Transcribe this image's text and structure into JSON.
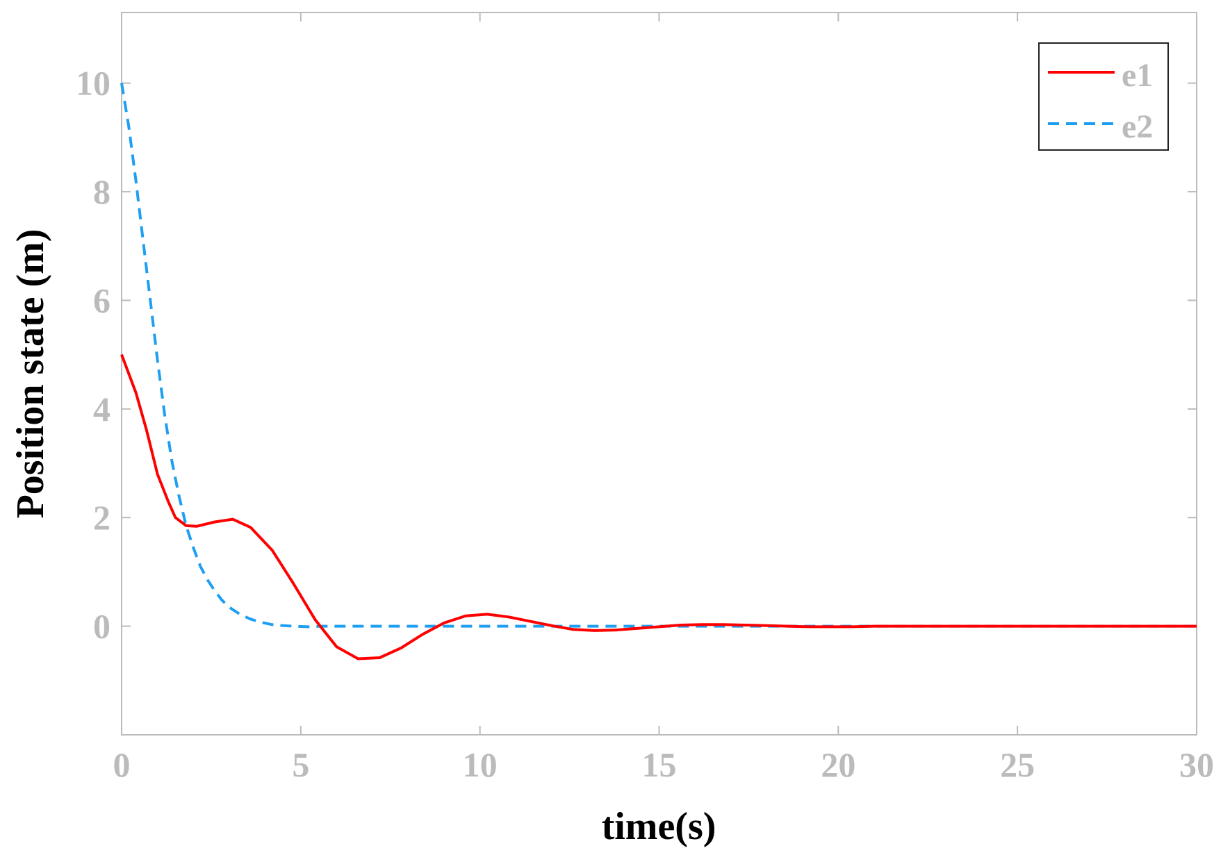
{
  "chart_data": {
    "type": "line",
    "xlabel": "time(s)",
    "ylabel": "Position state (m)",
    "xlim": [
      0,
      30
    ],
    "ylim": [
      -2,
      11.3
    ],
    "xticks": [
      0,
      5,
      10,
      15,
      20,
      25,
      30
    ],
    "xtick_labels": [
      "0",
      "5",
      "10",
      "15",
      "20",
      "25",
      "30"
    ],
    "yticks": [
      0,
      2,
      4,
      6,
      8,
      10
    ],
    "ytick_labels": [
      "0",
      "2",
      "4",
      "6",
      "8",
      "10"
    ],
    "grid": false,
    "legend_position": "top-right",
    "series": [
      {
        "name": "e1",
        "color": "#ff0000",
        "style": "solid",
        "x": [
          0,
          0.4,
          0.7,
          1.0,
          1.3,
          1.5,
          1.8,
          2.1,
          2.6,
          3.1,
          3.6,
          4.2,
          4.8,
          5.4,
          6.0,
          6.6,
          7.2,
          7.8,
          8.4,
          9.0,
          9.6,
          10.2,
          10.8,
          11.4,
          12.0,
          12.6,
          13.2,
          13.8,
          14.4,
          15.0,
          15.6,
          16.2,
          16.8,
          17.4,
          18.0,
          18.6,
          19.2,
          19.8,
          20.4,
          21.0,
          21.6,
          22.2,
          23.0,
          24.0,
          25.0,
          26.0,
          27.0,
          28.0,
          29.0,
          30.0
        ],
        "values": [
          5.0,
          4.3,
          3.6,
          2.8,
          2.3,
          2.0,
          1.85,
          1.84,
          1.92,
          1.97,
          1.82,
          1.4,
          0.78,
          0.12,
          -0.38,
          -0.6,
          -0.58,
          -0.4,
          -0.15,
          0.06,
          0.19,
          0.22,
          0.17,
          0.09,
          0.01,
          -0.06,
          -0.08,
          -0.07,
          -0.04,
          -0.01,
          0.02,
          0.03,
          0.03,
          0.02,
          0.01,
          0.0,
          -0.01,
          -0.01,
          -0.01,
          0.0,
          0.0,
          0.0,
          0.0,
          0.0,
          0.0,
          0.0,
          0.0,
          0.0,
          0.0,
          0.0
        ]
      },
      {
        "name": "e2",
        "color": "#1e9ff2",
        "style": "dashed",
        "x": [
          0,
          0.2,
          0.4,
          0.6,
          0.8,
          1.0,
          1.2,
          1.4,
          1.6,
          1.8,
          2.0,
          2.2,
          2.4,
          2.6,
          2.8,
          3.0,
          3.3,
          3.6,
          3.9,
          4.2,
          4.5,
          4.8,
          5.2,
          5.6,
          6.0,
          7.0,
          8.0,
          10.0,
          15.0,
          20.0,
          25.0,
          30.0
        ],
        "values": [
          10.0,
          9.2,
          8.2,
          7.1,
          6.0,
          4.9,
          3.9,
          3.05,
          2.4,
          1.85,
          1.45,
          1.1,
          0.85,
          0.65,
          0.48,
          0.35,
          0.22,
          0.13,
          0.07,
          0.03,
          0.01,
          0.0,
          -0.01,
          0.0,
          0.0,
          0.0,
          0.0,
          0.0,
          0.0,
          0.0,
          0.0,
          0.0
        ]
      }
    ]
  }
}
